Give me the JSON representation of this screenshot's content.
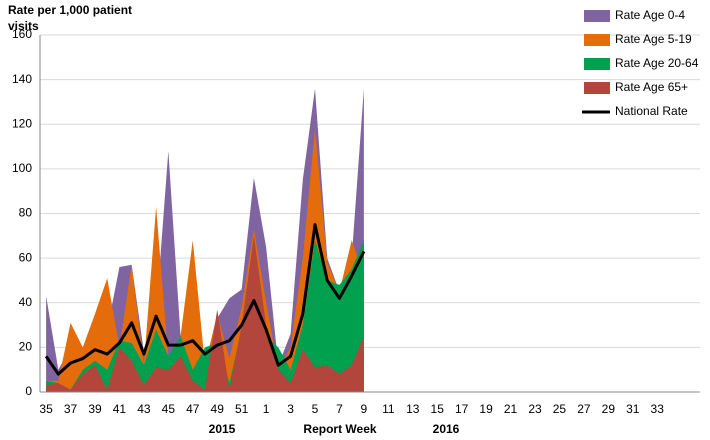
{
  "chart_data": {
    "type": "area",
    "ylabel": "Rate per 1,000 patient visits",
    "xlabel": "Report Week",
    "annotations": [
      "2015",
      "2016"
    ],
    "categories": [
      "35",
      null,
      "37",
      null,
      "39",
      null,
      "41",
      null,
      "43",
      null,
      "45",
      null,
      "47",
      null,
      "49",
      null,
      "51",
      null,
      "1",
      null,
      "3",
      null,
      "5",
      null,
      "7",
      null,
      "9",
      null,
      "11",
      null,
      "13",
      null,
      "15",
      null,
      "17",
      null,
      "19",
      null,
      "21",
      null,
      "23",
      null,
      "25",
      null,
      "27",
      null,
      "29",
      null,
      "31",
      null,
      "33",
      null,
      null,
      null
    ],
    "ylim": [
      0,
      160
    ],
    "yticks": [
      0,
      20,
      40,
      60,
      80,
      100,
      120,
      140,
      160
    ],
    "grid": true,
    "legend": "right",
    "series": [
      {
        "name": "Rate Age 0-4",
        "color": "#8064a2",
        "kind": "area",
        "values": [
          43,
          10,
          20,
          18,
          30,
          28,
          56,
          57,
          18,
          35,
          108,
          25,
          40,
          12,
          33,
          42,
          46,
          96,
          65,
          12,
          26,
          95,
          136,
          60,
          45,
          60,
          136,
          null,
          null,
          null,
          null,
          null,
          null,
          null,
          null,
          null,
          null,
          null,
          null,
          null,
          null,
          null,
          null,
          null,
          null,
          null,
          null,
          null,
          null,
          null,
          null,
          null,
          null,
          null
        ]
      },
      {
        "name": "Rate Age 5-19",
        "color": "#e46c0a",
        "kind": "area",
        "values": [
          5,
          5,
          31,
          20,
          35,
          51,
          20,
          57,
          12,
          83,
          15,
          25,
          68,
          12,
          35,
          15,
          38,
          73,
          40,
          10,
          20,
          60,
          118,
          58,
          45,
          68,
          52,
          null,
          null,
          null,
          null,
          null,
          null,
          null,
          null,
          null,
          null,
          null,
          null,
          null,
          null,
          null,
          null,
          null,
          null,
          null,
          null,
          null,
          null,
          null,
          null,
          null,
          null,
          null
        ]
      },
      {
        "name": "Rate Age 20-64",
        "color": "#00a04f",
        "kind": "area",
        "values": [
          5,
          4,
          1,
          10,
          14,
          10,
          23,
          22,
          12,
          28,
          16,
          25,
          10,
          20,
          22,
          4,
          28,
          40,
          25,
          20,
          10,
          30,
          68,
          50,
          48,
          55,
          68,
          null,
          null,
          null,
          null,
          null,
          null,
          null,
          null,
          null,
          null,
          null,
          null,
          null,
          null,
          null,
          null,
          null,
          null,
          null,
          null,
          null,
          null,
          null,
          null,
          null,
          null,
          null
        ]
      },
      {
        "name": "Rate Age 65+",
        "color": "#b3463c",
        "kind": "area",
        "values": [
          3,
          4,
          1,
          8,
          12,
          1,
          20,
          14,
          3,
          11,
          10,
          16,
          5,
          1,
          37,
          1,
          30,
          70,
          30,
          10,
          4,
          19,
          11,
          12,
          8,
          12,
          25,
          null,
          null,
          null,
          null,
          null,
          null,
          null,
          null,
          null,
          null,
          null,
          null,
          null,
          null,
          null,
          null,
          null,
          null,
          null,
          null,
          null,
          null,
          null,
          null,
          null,
          null,
          null
        ]
      },
      {
        "name": "National Rate",
        "color": "#000000",
        "kind": "line",
        "values": [
          16,
          8,
          13,
          15,
          19,
          17,
          22,
          31,
          17,
          34,
          21,
          21,
          23,
          17,
          21,
          23,
          30,
          41,
          28,
          12,
          16,
          35,
          75,
          50,
          42,
          52,
          63,
          null,
          null,
          null,
          null,
          null,
          null,
          null,
          null,
          null,
          null,
          null,
          null,
          null,
          null,
          null,
          null,
          null,
          null,
          null,
          null,
          null,
          null,
          null,
          null,
          null,
          null,
          null
        ]
      }
    ]
  }
}
